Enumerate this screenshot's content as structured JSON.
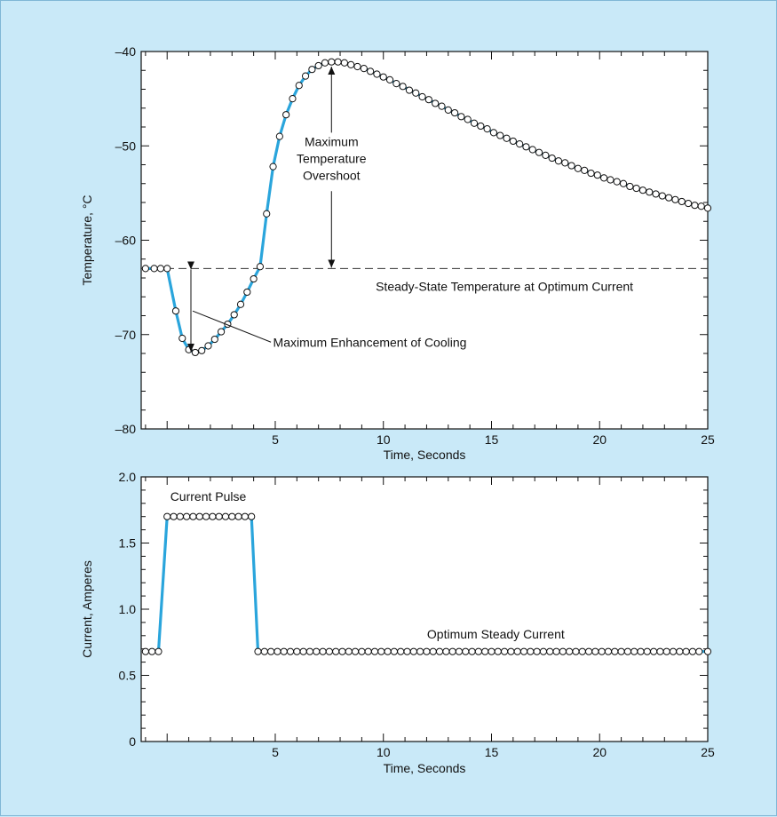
{
  "colors": {
    "background": "#c9e9f8",
    "curve": "#2aa5dc",
    "marker_fill": "#ffffff",
    "marker_stroke": "#111111",
    "frame": "#111111"
  },
  "chart_data": [
    {
      "type": "line",
      "xlabel": "Time, Seconds",
      "ylabel": "Temperature, °C",
      "xlim": [
        -1.2,
        25
      ],
      "ylim": [
        -80,
        -40
      ],
      "grid": false,
      "x_ticks": [
        5,
        10,
        15,
        20,
        25
      ],
      "y_ticks": [
        -80,
        -70,
        -60,
        -50,
        -40
      ],
      "series": [
        {
          "x": [
            -1.0,
            -0.6,
            -0.3,
            0.0,
            0.4,
            0.7,
            1.0,
            1.3,
            1.6,
            1.9,
            2.2,
            2.5,
            2.8,
            3.1,
            3.4,
            3.7,
            4.0,
            4.3,
            4.6,
            4.9,
            5.2,
            5.5,
            5.8,
            6.1,
            6.4,
            6.7,
            7.0,
            7.3,
            7.6,
            7.9,
            8.2,
            8.5,
            8.8,
            9.1,
            9.4,
            9.7,
            10.0,
            10.3,
            10.6,
            10.9,
            11.2,
            11.5,
            11.8,
            12.1,
            12.4,
            12.7,
            13.0,
            13.3,
            13.6,
            13.9,
            14.2,
            14.5,
            14.8,
            15.1,
            15.4,
            15.7,
            16.0,
            16.3,
            16.6,
            16.9,
            17.2,
            17.5,
            17.8,
            18.1,
            18.4,
            18.7,
            19.0,
            19.3,
            19.6,
            19.9,
            20.2,
            20.5,
            20.8,
            21.1,
            21.4,
            21.7,
            22.0,
            22.3,
            22.6,
            22.9,
            23.2,
            23.5,
            23.8,
            24.1,
            24.4,
            24.7,
            25.0
          ],
          "y": [
            -63.0,
            -63.0,
            -63.0,
            -63.0,
            -67.5,
            -70.4,
            -71.6,
            -71.9,
            -71.7,
            -71.2,
            -70.5,
            -69.7,
            -68.9,
            -67.9,
            -66.8,
            -65.5,
            -64.1,
            -62.8,
            -57.2,
            -52.2,
            -49.0,
            -46.7,
            -45.0,
            -43.6,
            -42.6,
            -41.9,
            -41.5,
            -41.2,
            -41.1,
            -41.1,
            -41.2,
            -41.4,
            -41.6,
            -41.8,
            -42.1,
            -42.4,
            -42.7,
            -43.0,
            -43.4,
            -43.7,
            -44.1,
            -44.4,
            -44.8,
            -45.1,
            -45.5,
            -45.8,
            -46.2,
            -46.5,
            -46.9,
            -47.2,
            -47.6,
            -47.9,
            -48.2,
            -48.6,
            -48.9,
            -49.2,
            -49.5,
            -49.8,
            -50.1,
            -50.4,
            -50.7,
            -51.0,
            -51.3,
            -51.6,
            -51.8,
            -52.1,
            -52.4,
            -52.6,
            -52.9,
            -53.1,
            -53.4,
            -53.6,
            -53.8,
            -54.0,
            -54.3,
            -54.5,
            -54.7,
            -54.9,
            -55.1,
            -55.3,
            -55.5,
            -55.7,
            -55.9,
            -56.1,
            -56.3,
            -56.4,
            -56.6
          ]
        }
      ],
      "reference_line": {
        "y": -63,
        "label": "Steady-State Temperature at Optimum Current"
      },
      "annotations": [
        {
          "text_lines": [
            "Maximum",
            "Temperature",
            "Overshoot"
          ],
          "x_from": 7.6,
          "y_from": -41.2,
          "y_to": -63
        },
        {
          "text": "Maximum Enhancement of Cooling",
          "x": 1.1,
          "y_from": -63,
          "y_to": -71.8
        }
      ]
    },
    {
      "type": "line",
      "xlabel": "Time, Seconds",
      "ylabel": "Current, Amperes",
      "xlim": [
        -1.2,
        25
      ],
      "ylim": [
        0,
        2.0
      ],
      "grid": false,
      "x_ticks": [
        5,
        10,
        15,
        20,
        25
      ],
      "y_ticks": [
        "0",
        "0.5",
        "1.0",
        "1.5",
        "2.0"
      ],
      "series": [
        {
          "x": [
            -1.0,
            -0.7,
            -0.4,
            0.0,
            0.3,
            0.6,
            0.9,
            1.2,
            1.5,
            1.8,
            2.1,
            2.4,
            2.7,
            3.0,
            3.3,
            3.6,
            3.9,
            4.2,
            4.5,
            4.8,
            5.1,
            5.4,
            5.7,
            6.0,
            6.3,
            6.6,
            6.9,
            7.2,
            7.5,
            7.8,
            8.1,
            8.4,
            8.7,
            9.0,
            9.3,
            9.6,
            9.9,
            10.2,
            10.5,
            10.8,
            11.1,
            11.4,
            11.7,
            12.0,
            12.3,
            12.6,
            12.9,
            13.2,
            13.5,
            13.8,
            14.1,
            14.4,
            14.7,
            15.0,
            15.3,
            15.6,
            15.9,
            16.2,
            16.5,
            16.8,
            17.1,
            17.4,
            17.7,
            18.0,
            18.3,
            18.6,
            18.9,
            19.2,
            19.5,
            19.8,
            20.1,
            20.4,
            20.7,
            21.0,
            21.3,
            21.6,
            21.9,
            22.2,
            22.5,
            22.8,
            23.1,
            23.4,
            23.7,
            24.0,
            24.3,
            24.6,
            25.0
          ],
          "y": [
            0.68,
            0.68,
            0.68,
            1.7,
            1.7,
            1.7,
            1.7,
            1.7,
            1.7,
            1.7,
            1.7,
            1.7,
            1.7,
            1.7,
            1.7,
            1.7,
            1.7,
            0.68,
            0.68,
            0.68,
            0.68,
            0.68,
            0.68,
            0.68,
            0.68,
            0.68,
            0.68,
            0.68,
            0.68,
            0.68,
            0.68,
            0.68,
            0.68,
            0.68,
            0.68,
            0.68,
            0.68,
            0.68,
            0.68,
            0.68,
            0.68,
            0.68,
            0.68,
            0.68,
            0.68,
            0.68,
            0.68,
            0.68,
            0.68,
            0.68,
            0.68,
            0.68,
            0.68,
            0.68,
            0.68,
            0.68,
            0.68,
            0.68,
            0.68,
            0.68,
            0.68,
            0.68,
            0.68,
            0.68,
            0.68,
            0.68,
            0.68,
            0.68,
            0.68,
            0.68,
            0.68,
            0.68,
            0.68,
            0.68,
            0.68,
            0.68,
            0.68,
            0.68,
            0.68,
            0.68,
            0.68,
            0.68,
            0.68,
            0.68,
            0.68,
            0.68,
            0.68
          ]
        }
      ],
      "annotations": [
        {
          "text": "Current Pulse",
          "x": 1.9,
          "y": 1.82
        },
        {
          "text": "Optimum Steady Current",
          "x": 15.2,
          "y": 0.78
        }
      ]
    }
  ]
}
